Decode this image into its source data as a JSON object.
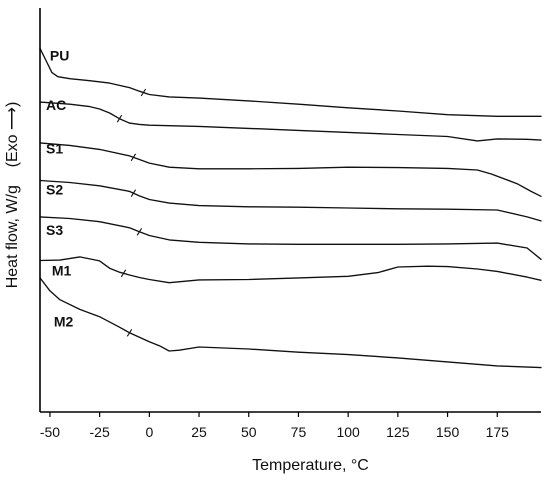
{
  "chart_data": {
    "type": "line",
    "xlabel": "Temperature, °C",
    "ylabel": "Heat flow, W/g",
    "ylabel_note": "(Exo",
    "ylabel_arrow": "⟶)",
    "xlim": [
      -55,
      197
    ],
    "ylim": [
      0,
      100
    ],
    "x_ticks": [
      -50,
      -25,
      0,
      25,
      50,
      75,
      100,
      125,
      150,
      175
    ],
    "x_tick_labels": [
      "-50",
      "-25",
      "0",
      "25",
      "50",
      "75",
      "100",
      "125",
      "150",
      "175"
    ],
    "grid": false,
    "series": [
      {
        "name": "PU",
        "tg_marker": -3,
        "x": [
          -55,
          -52,
          -49,
          -46,
          -40,
          -30,
          -20,
          -10,
          -5,
          0,
          10,
          25,
          50,
          75,
          100,
          125,
          150,
          175,
          197
        ],
        "y": [
          90,
          87,
          84,
          83,
          82.5,
          82,
          81.4,
          80.3,
          79.4,
          78.6,
          78,
          77.7,
          77,
          76.2,
          75.3,
          74.5,
          73.6,
          73.2,
          73.2
        ]
      },
      {
        "name": "AC",
        "x": [
          -55,
          -40,
          -30,
          -25,
          -20,
          -15,
          -10,
          -5,
          0,
          25,
          50,
          75,
          100,
          125,
          150,
          165,
          175,
          190,
          197
        ],
        "y": [
          76.7,
          76.2,
          75.6,
          75,
          74,
          72.6,
          71.5,
          71.2,
          71,
          70.7,
          70.2,
          69.7,
          69.2,
          68.7,
          68.2,
          67.1,
          67.6,
          67.5,
          67.3
        ],
        "tg_marker": -15
      },
      {
        "name": "S1",
        "x": [
          -55,
          -40,
          -25,
          -10,
          0,
          10,
          25,
          50,
          75,
          100,
          125,
          150,
          165,
          172,
          185,
          192,
          197
        ],
        "y": [
          66.6,
          66,
          65,
          63.4,
          61.6,
          60.6,
          60.2,
          60.2,
          60.3,
          60.6,
          60.5,
          60.3,
          59.9,
          58.9,
          56.5,
          54.6,
          53.4
        ],
        "tg_marker": -8
      },
      {
        "name": "S2",
        "x": [
          -55,
          -40,
          -25,
          -10,
          -5,
          0,
          10,
          25,
          50,
          75,
          100,
          125,
          150,
          175,
          190,
          197
        ],
        "y": [
          57.3,
          56.8,
          56,
          54.6,
          53.5,
          52.6,
          51.7,
          51.1,
          50.8,
          50.7,
          50.5,
          50.3,
          50.2,
          50,
          48.3,
          47.3
        ],
        "tg_marker": -8
      },
      {
        "name": "S3",
        "x": [
          -55,
          -40,
          -25,
          -10,
          -5,
          0,
          10,
          25,
          50,
          75,
          100,
          125,
          150,
          175,
          190,
          197
        ],
        "y": [
          48.3,
          47.9,
          47.1,
          45.6,
          44.6,
          43.7,
          42.6,
          42,
          41.6,
          41.5,
          41.5,
          41.5,
          41.6,
          41.8,
          40.6,
          37.8
        ],
        "tg_marker": -5
      },
      {
        "name": "M1",
        "x": [
          -55,
          -45,
          -35,
          -25,
          -20,
          -15,
          -10,
          -5,
          0,
          10,
          25,
          50,
          75,
          100,
          115,
          125,
          140,
          150,
          165,
          175,
          190,
          197
        ],
        "y": [
          37.5,
          37.6,
          38.4,
          37.4,
          35.6,
          34.6,
          33.9,
          33.3,
          32.8,
          32,
          32.7,
          32.8,
          33.2,
          33.6,
          34.5,
          35.9,
          36.1,
          36,
          35.4,
          34.8,
          33.4,
          32.6
        ],
        "tg_marker": -13
      },
      {
        "name": "M2",
        "x": [
          -55,
          -50,
          -45,
          -35,
          -25,
          -15,
          -10,
          -5,
          0,
          5,
          10,
          15,
          25,
          50,
          75,
          100,
          125,
          150,
          175,
          197
        ],
        "y": [
          33.2,
          30,
          27.8,
          25.4,
          23.6,
          21,
          19.6,
          18.5,
          17.4,
          16.4,
          15.1,
          15.3,
          16.1,
          15.6,
          14.8,
          14.2,
          13.4,
          12.4,
          11.4,
          11
        ],
        "tg_marker": -10
      }
    ],
    "label_anchors": {
      "PU": [
        -50,
        87
      ],
      "AC": [
        -52,
        74.8
      ],
      "S1": [
        -52,
        64
      ],
      "S2": [
        -52,
        53.8
      ],
      "S3": [
        -52,
        43.8
      ],
      "M1": [
        -49,
        33.8
      ],
      "M2": [
        -48,
        21.2
      ]
    }
  }
}
